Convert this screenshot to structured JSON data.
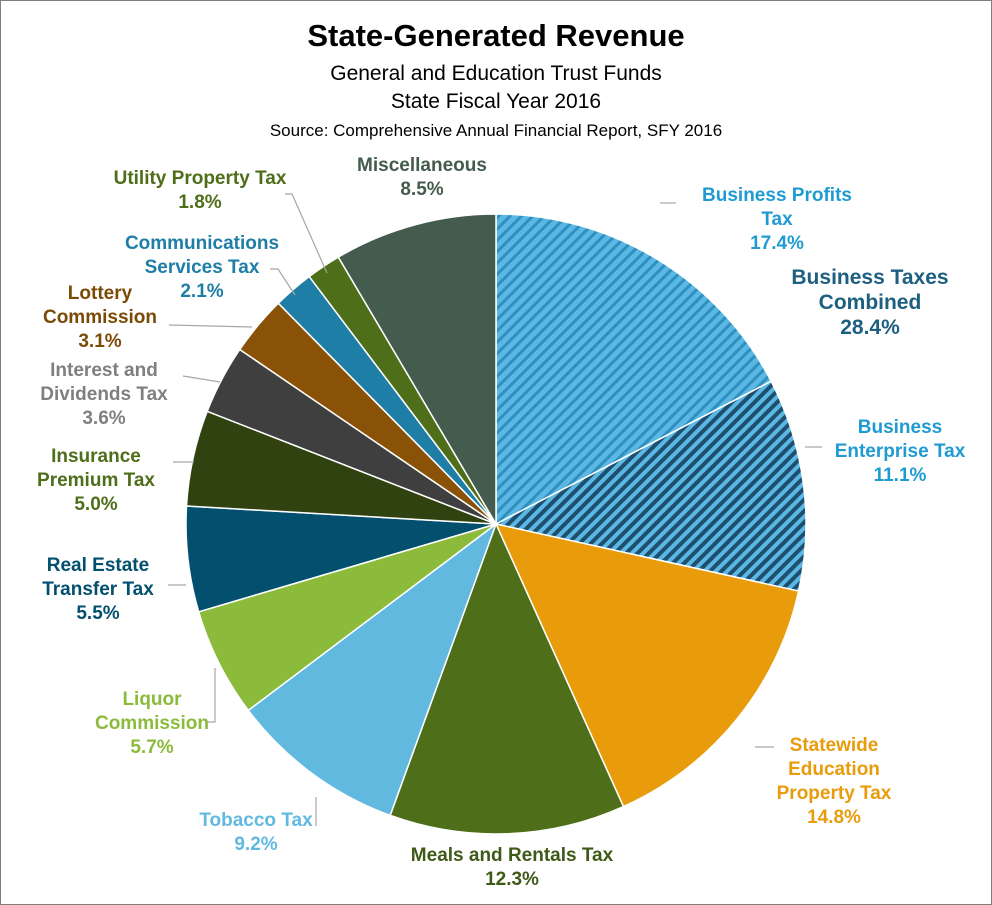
{
  "header": {
    "title": "State-Generated Revenue",
    "subtitle1": "General and Education Trust Funds",
    "subtitle2": "State Fiscal Year 2016",
    "source": "Source: Comprehensive Annual Financial Report, SFY 2016"
  },
  "chart_data": {
    "type": "pie",
    "start": "12 o'clock",
    "direction": "clockwise",
    "legend": "none",
    "slices": [
      {
        "key": "business-profits-tax",
        "label_lines": [
          "Business Profits",
          "Tax"
        ],
        "value_text": "17.4%",
        "value": 17.4,
        "color": "#5bb8e4",
        "hatch": "light",
        "label_color": "#1f9bd1"
      },
      {
        "key": "business-enterprise-tax",
        "label_lines": [
          "Business",
          "Enterprise Tax"
        ],
        "value_text": "11.1%",
        "value": 11.1,
        "color": "#5bb8e4",
        "hatch": "dark",
        "label_color": "#1f9bd1"
      },
      {
        "key": "statewide-education-property-tax",
        "label_lines": [
          "Statewide",
          "Education",
          "Property Tax"
        ],
        "value_text": "14.8%",
        "value": 14.8,
        "color": "#e89c0c",
        "label_color": "#e89c0c"
      },
      {
        "key": "meals-and-rentals-tax",
        "label_lines": [
          "Meals and Rentals Tax"
        ],
        "value_text": "12.3%",
        "value": 12.3,
        "color": "#4e6e1a",
        "label_color": "#3f5a17"
      },
      {
        "key": "tobacco-tax",
        "label_lines": [
          "Tobacco Tax"
        ],
        "value_text": "9.2%",
        "value": 9.2,
        "color": "#62b9e0",
        "label_color": "#62b9e0"
      },
      {
        "key": "liquor-commission",
        "label_lines": [
          "Liquor",
          "Commission"
        ],
        "value_text": "5.7%",
        "value": 5.7,
        "color": "#8cbb3c",
        "label_color": "#8cbb3c"
      },
      {
        "key": "real-estate-transfer-tax",
        "label_lines": [
          "Real Estate",
          "Transfer Tax"
        ],
        "value_text": "5.5%",
        "value": 5.5,
        "color": "#03506e",
        "label_color": "#03506e"
      },
      {
        "key": "insurance-premium-tax",
        "label_lines": [
          "Insurance",
          "Premium Tax"
        ],
        "value_text": "5.0%",
        "value": 5.0,
        "color": "#2f4210",
        "label_color": "#4e6e1a"
      },
      {
        "key": "interest-and-dividends-tax",
        "label_lines": [
          "Interest and",
          "Dividends Tax"
        ],
        "value_text": "3.6%",
        "value": 3.6,
        "color": "#3f3f3f",
        "label_color": "#7f7f7f"
      },
      {
        "key": "lottery-commission",
        "label_lines": [
          "Lottery",
          "Commission"
        ],
        "value_text": "3.1%",
        "value": 3.1,
        "color": "#8a5207",
        "label_color": "#7a4a06"
      },
      {
        "key": "communications-services-tax",
        "label_lines": [
          "Communications",
          "Services Tax"
        ],
        "value_text": "2.1%",
        "value": 2.1,
        "color": "#1e7ea6",
        "label_color": "#1e7ea6"
      },
      {
        "key": "utility-property-tax",
        "label_lines": [
          "Utility Property Tax"
        ],
        "value_text": "1.8%",
        "value": 1.8,
        "color": "#4e6e1a",
        "label_color": "#4e6e1a"
      },
      {
        "key": "miscellaneous",
        "label_lines": [
          "Miscellaneous"
        ],
        "value_text": "8.5%",
        "value": 8.5,
        "color": "#435c4e",
        "label_color": "#435c4e"
      }
    ],
    "annotations": [
      {
        "key": "business-taxes-combined",
        "label_lines": [
          "Business Taxes",
          "Combined"
        ],
        "value_text": "28.4%",
        "value": 28.4,
        "label_color": "#1d5f80"
      }
    ]
  }
}
